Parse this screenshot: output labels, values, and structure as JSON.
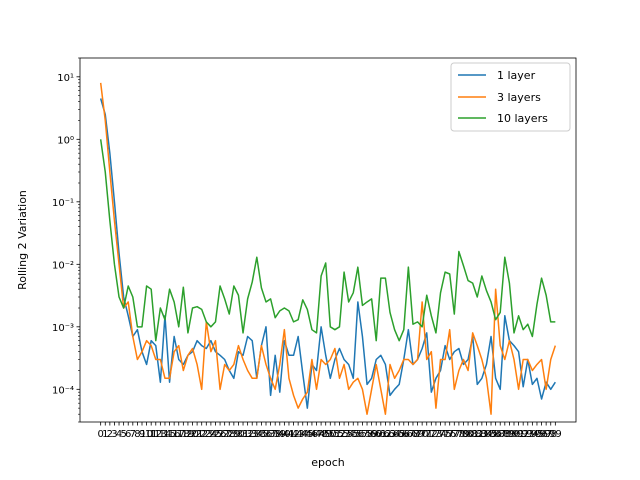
{
  "chart_data": {
    "type": "line",
    "title": "",
    "xlabel": "epoch",
    "ylabel": "Rolling 2 Variation",
    "yscale": "log",
    "ylim": [
      3e-05,
      20
    ],
    "xlim": [
      -4.5,
      103.5
    ],
    "y_ticks": [
      {
        "value": 0.0001,
        "label": "10⁻⁴"
      },
      {
        "value": 0.001,
        "label": "10⁻³"
      },
      {
        "value": 0.01,
        "label": "10⁻²"
      },
      {
        "value": 0.1,
        "label": "10⁻¹"
      },
      {
        "value": 1,
        "label": "10⁰"
      },
      {
        "value": 10,
        "label": "10¹"
      }
    ],
    "x_ticks": [
      0,
      1,
      2,
      3,
      4,
      5,
      6,
      7,
      8,
      9,
      10,
      11,
      12,
      13,
      14,
      15,
      16,
      17,
      18,
      19,
      20,
      21,
      22,
      23,
      24,
      25,
      26,
      27,
      28,
      29,
      30,
      31,
      32,
      33,
      34,
      35,
      36,
      37,
      38,
      39,
      40,
      41,
      42,
      43,
      44,
      45,
      46,
      47,
      48,
      49,
      50,
      51,
      52,
      53,
      54,
      55,
      56,
      57,
      58,
      59,
      60,
      61,
      62,
      63,
      64,
      65,
      66,
      67,
      68,
      69,
      70,
      71,
      72,
      73,
      74,
      75,
      76,
      77,
      78,
      79,
      80,
      81,
      82,
      83,
      84,
      85,
      86,
      87,
      88,
      89,
      90,
      91,
      92,
      93,
      94,
      95,
      96,
      97,
      98,
      99
    ],
    "grid": false,
    "legend_position": "top-right",
    "series": [
      {
        "name": "1 layer",
        "color": "#1f77b4",
        "values": [
          4.5,
          2.5,
          0.6,
          0.1,
          0.015,
          0.003,
          0.0015,
          0.0007,
          0.0009,
          0.0004,
          0.00025,
          0.0006,
          0.0005,
          0.00013,
          0.0015,
          0.00013,
          0.0007,
          0.0003,
          0.00025,
          0.00035,
          0.0004,
          0.0006,
          0.0005,
          0.00045,
          0.0006,
          0.0004,
          0.00035,
          0.0003,
          0.0002,
          0.00015,
          0.0004,
          0.00035,
          0.0007,
          0.0006,
          0.00015,
          0.0005,
          0.001,
          8e-05,
          0.00035,
          9e-05,
          0.0006,
          0.00035,
          0.00035,
          0.0007,
          0.00018,
          5e-05,
          0.00025,
          0.0002,
          0.001,
          0.00035,
          0.00015,
          0.0003,
          0.00045,
          0.0003,
          0.00025,
          0.00015,
          0.0025,
          0.0007,
          0.00012,
          0.00015,
          0.0003,
          0.00035,
          0.00025,
          8e-05,
          0.0001,
          0.00012,
          0.0003,
          0.0009,
          0.00025,
          0.0003,
          0.00045,
          0.0008,
          9e-05,
          0.00015,
          0.0002,
          0.0005,
          0.0003,
          0.0004,
          0.00045,
          0.00025,
          0.0003,
          0.0007,
          0.00012,
          0.00015,
          0.00025,
          0.0007,
          0.00015,
          0.0001,
          0.0015,
          0.0006,
          0.0005,
          0.0004,
          0.00011,
          0.0003,
          0.00012,
          0.00015,
          7e-05,
          0.00013,
          0.0001,
          0.00013
        ]
      },
      {
        "name": "3 layers",
        "color": "#ff7f0e",
        "values": [
          8.0,
          2.0,
          0.3,
          0.05,
          0.01,
          0.002,
          0.0025,
          0.0007,
          0.0003,
          0.0004,
          0.0006,
          0.0005,
          0.0003,
          0.0003,
          0.00015,
          0.00015,
          0.0004,
          0.0005,
          0.0002,
          0.00035,
          0.00045,
          0.00025,
          0.0001,
          0.0012,
          0.0004,
          0.0006,
          0.0001,
          0.00025,
          0.0002,
          0.00025,
          0.0005,
          0.0003,
          0.0002,
          0.00015,
          0.00015,
          0.0005,
          0.00025,
          0.00015,
          0.0001,
          0.00025,
          0.0009,
          0.00015,
          8e-05,
          5e-05,
          7e-05,
          9e-05,
          0.0003,
          0.0001,
          0.0003,
          0.00025,
          0.0003,
          0.00045,
          0.00015,
          0.00025,
          0.0001,
          0.00013,
          0.00015,
          0.0001,
          4e-05,
          0.0001,
          0.00025,
          0.0001,
          4e-05,
          0.00025,
          0.00015,
          0.0002,
          0.0003,
          0.0003,
          0.00025,
          0.0003,
          0.0025,
          0.0003,
          0.0004,
          5e-05,
          0.0003,
          0.0003,
          0.0009,
          0.0001,
          0.0002,
          0.0003,
          0.0002,
          0.0008,
          0.0005,
          0.0003,
          0.00015,
          4e-05,
          0.004,
          0.0005,
          0.0003,
          0.0006,
          0.0003,
          0.0001,
          0.0003,
          0.0003,
          0.0002,
          0.00025,
          0.0003,
          0.0001,
          0.0003,
          0.0005
        ]
      },
      {
        "name": "10 layers",
        "color": "#2ca02c",
        "values": [
          1.0,
          0.3,
          0.05,
          0.01,
          0.003,
          0.002,
          0.0045,
          0.003,
          0.001,
          0.001,
          0.0045,
          0.004,
          0.0006,
          0.002,
          0.0013,
          0.004,
          0.0025,
          0.001,
          0.0043,
          0.0008,
          0.002,
          0.0021,
          0.0019,
          0.0012,
          0.001,
          0.0012,
          0.0045,
          0.0028,
          0.0016,
          0.0045,
          0.0032,
          0.0008,
          0.0028,
          0.0052,
          0.013,
          0.0042,
          0.0025,
          0.0028,
          0.0014,
          0.0018,
          0.002,
          0.0018,
          0.0012,
          0.0013,
          0.0027,
          0.0019,
          0.0009,
          0.0008,
          0.0065,
          0.0105,
          0.001,
          0.0009,
          0.001,
          0.0075,
          0.0025,
          0.0035,
          0.009,
          0.0022,
          0.0025,
          0.0028,
          0.0006,
          0.006,
          0.006,
          0.0017,
          0.0009,
          0.0006,
          0.0009,
          0.009,
          0.0011,
          0.0012,
          0.001,
          0.0032,
          0.0015,
          0.0008,
          0.0035,
          0.0075,
          0.007,
          0.0016,
          0.016,
          0.0095,
          0.0055,
          0.005,
          0.003,
          0.0065,
          0.0038,
          0.0025,
          0.0013,
          0.0017,
          0.013,
          0.005,
          0.0008,
          0.0015,
          0.0009,
          0.0011,
          0.0007,
          0.0023,
          0.006,
          0.0032,
          0.0012,
          0.0012
        ]
      }
    ]
  }
}
